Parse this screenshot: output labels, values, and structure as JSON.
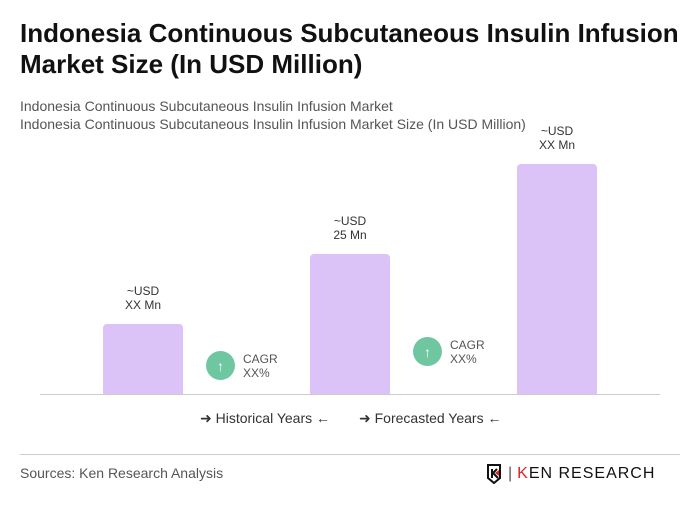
{
  "title": "Indonesia Continuous Subcutaneous Insulin Infusion Market Size (In USD Million)",
  "subtitle1": "Indonesia Continuous Subcutaneous Insulin Infusion Market",
  "subtitle2": "Indonesia Continuous Subcutaneous Insulin Infusion Market Size (In USD Million)",
  "chart_data": {
    "type": "bar",
    "categories": [
      "",
      "",
      ""
    ],
    "values": [
      12.5,
      25,
      41
    ],
    "data_labels": [
      [
        "~USD",
        "XX Mn"
      ],
      [
        "~USD",
        "25 Mn"
      ],
      [
        "~USD",
        "XX Mn"
      ]
    ],
    "bar_color": "#dcc3f7",
    "cagr": [
      {
        "label": "CAGR",
        "value": "XX%"
      },
      {
        "label": "CAGR",
        "value": "XX%"
      }
    ],
    "cagr_color": "#6fc7a2",
    "legend": [
      "Historical Years",
      "Forecasted Years"
    ],
    "grid": false
  },
  "sources": "Sources: Ken Research Analysis",
  "logo": "KEN RESEARCH"
}
